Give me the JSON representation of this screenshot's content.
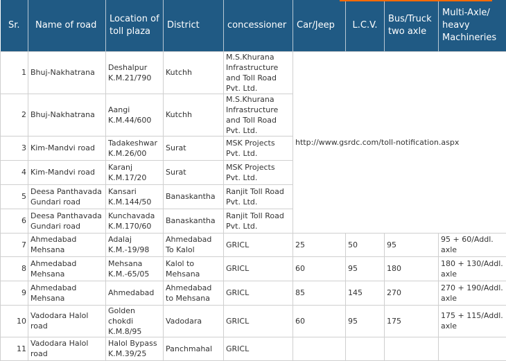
{
  "headers": {
    "sr": "Sr.",
    "road": "Name of road",
    "location": "Location of toll plaza",
    "district": "District",
    "concessioner": "concessioner",
    "car": "Car/Jeep",
    "lcv": "L.C.V.",
    "bus": "Bus/Truck two axle",
    "multi": "Multi-Axle/ heavy Machineries"
  },
  "link_text": "http://www.gsrdc.com/toll-notification.aspx",
  "rows": [
    {
      "sr": "1",
      "road": "Bhuj-Nakhatrana",
      "location": "Deshalpur K.M.21/790",
      "district": "Kutchh",
      "concessioner": "M.S.Khurana Infrastructure and Toll Road Pvt. Ltd."
    },
    {
      "sr": "2",
      "road": "Bhuj-Nakhatrana",
      "location": "Aangi K.M.44/600",
      "district": "Kutchh",
      "concessioner": "M.S.Khurana Infrastructure and Toll Road Pvt. Ltd."
    },
    {
      "sr": "3",
      "road": "Kim-Mandvi road",
      "location": "Tadakeshwar K.M.26/00",
      "district": "Surat",
      "concessioner": "MSK Projects Pvt. Ltd."
    },
    {
      "sr": "4",
      "road": "Kim-Mandvi road",
      "location": "Karanj K.M.17/20",
      "district": "Surat",
      "concessioner": "MSK Projects Pvt. Ltd."
    },
    {
      "sr": "5",
      "road": "Deesa Panthavada Gundari road",
      "location": "Kansari K.M.144/50",
      "district": "Banaskantha",
      "concessioner": "Ranjit Toll Road Pvt. Ltd."
    },
    {
      "sr": "6",
      "road": "Deesa Panthavada Gundari road",
      "location": "Kunchavada K.M.170/60",
      "district": "Banaskantha",
      "concessioner": "Ranjit Toll Road Pvt. Ltd."
    },
    {
      "sr": "7",
      "road": "Ahmedabad Mehsana",
      "location": "Adalaj K.M.-19/98",
      "district": "Ahmedabad To Kalol",
      "concessioner": "GRICL",
      "car": "25",
      "lcv": "50",
      "bus": "95",
      "multi": "95 + 60/Addl. axle"
    },
    {
      "sr": "8",
      "road": "Ahmedabad Mehsana",
      "location": "Mehsana K.M.-65/05",
      "district": "Kalol to Mehsana",
      "concessioner": "GRICL",
      "car": "60",
      "lcv": "95",
      "bus": "180",
      "multi": "180 + 130/Addl. axle"
    },
    {
      "sr": "9",
      "road": "Ahmedabad Mehsana",
      "location": "Ahmedabad",
      "district": "Ahmedabad to Mehsana",
      "concessioner": "GRICL",
      "car": "85",
      "lcv": "145",
      "bus": "270",
      "multi": "270 + 190/Addl. axle"
    },
    {
      "sr": "10",
      "road": "Vadodara Halol road",
      "location": "Golden chokdi K.M.8/95",
      "district": "Vadodara",
      "concessioner": "GRICL",
      "car": "60",
      "lcv": "95",
      "bus": "175",
      "multi": "175 + 115/Addl. axle"
    },
    {
      "sr": "11",
      "road": "Vadodara Halol road",
      "location": "Halol Bypass K.M.39/25",
      "district": "Panchmahal",
      "concessioner": "GRICL",
      "car": "",
      "lcv": "",
      "bus": "",
      "multi": ""
    }
  ]
}
